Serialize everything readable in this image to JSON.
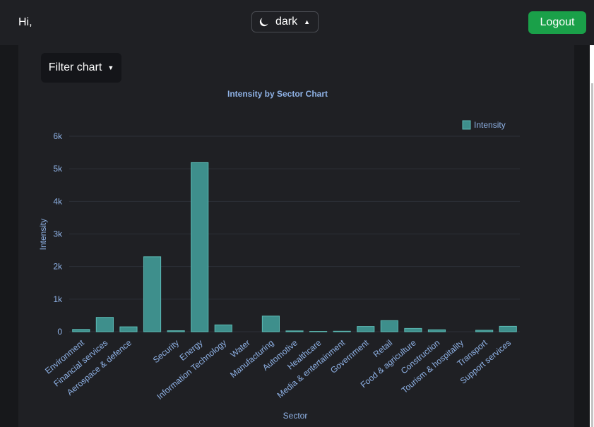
{
  "header": {
    "greeting": "Hi,",
    "theme_label": "dark",
    "logout_label": "Logout"
  },
  "filter": {
    "label": "Filter chart"
  },
  "colors": {
    "bar_fill": "#3e8f8c",
    "bar_stroke": "#5cbab4",
    "text": "#8fb2e6",
    "grid": "#2c2f37",
    "logout": "#1aa049"
  },
  "chart_data": {
    "type": "bar",
    "title": "Intensity by Sector Chart",
    "xlabel": "Sector",
    "ylabel": "Intensity",
    "ylim": [
      0,
      6000
    ],
    "yticks": [
      0,
      1000,
      2000,
      3000,
      4000,
      5000,
      6000
    ],
    "ytick_labels": [
      "0",
      "1k",
      "2k",
      "3k",
      "4k",
      "5k",
      "6k"
    ],
    "legend": [
      "Intensity"
    ],
    "categories": [
      "Environment",
      "Financial services",
      "Aerospace & defence",
      "",
      "Security",
      "Energy",
      "Information Technology",
      "Water",
      "Manufacturing",
      "Automotive",
      "Healthcare",
      "Media & entertainment",
      "Government",
      "Retail",
      "Food & agriculture",
      "Construction",
      "Tourism & hospitality",
      "Transport",
      "Support services"
    ],
    "values": [
      70,
      440,
      150,
      2300,
      30,
      5190,
      210,
      0,
      480,
      25,
      10,
      15,
      160,
      340,
      100,
      60,
      0,
      45,
      165
    ]
  }
}
